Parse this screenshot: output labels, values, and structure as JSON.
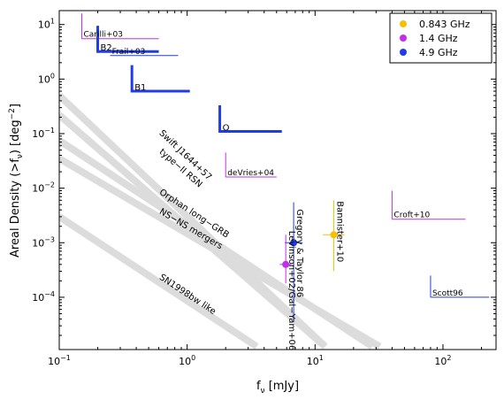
{
  "chart_data": {
    "type": "scatter",
    "xlabel": "f_ν [mJy]",
    "ylabel": "Areal Density (>f_ν) [deg^-2]",
    "x_scale": "log",
    "y_scale": "log",
    "xlim": [
      0.1,
      260
    ],
    "ylim": [
      1.1e-05,
      18
    ],
    "x_ticks": [
      {
        "value": 0.1,
        "base": "10",
        "exp": "−1"
      },
      {
        "value": 1,
        "base": "10",
        "exp": "0"
      },
      {
        "value": 10,
        "base": "10",
        "exp": "1"
      },
      {
        "value": 100,
        "base": "10",
        "exp": "2"
      }
    ],
    "y_ticks": [
      {
        "value": 0.0001,
        "base": "10",
        "exp": "−4"
      },
      {
        "value": 0.001,
        "base": "10",
        "exp": "−3"
      },
      {
        "value": 0.01,
        "base": "10",
        "exp": "−2"
      },
      {
        "value": 0.1,
        "base": "10",
        "exp": "−1"
      },
      {
        "value": 1,
        "base": "10",
        "exp": "0"
      },
      {
        "value": 10,
        "base": "10",
        "exp": "1"
      }
    ],
    "legend": {
      "placement": "top-right",
      "entries": [
        {
          "label": "0.843 GHz",
          "color": "#f5c000"
        },
        {
          "label": "1.4 GHz",
          "color": "#c030e8"
        },
        {
          "label": "4.9 GHz",
          "color": "#1f3ce8"
        }
      ]
    },
    "models": [
      {
        "label": "Swift J1644+57",
        "x": [
          0.1,
          12
        ],
        "y": [
          0.5,
          1.25e-05
        ],
        "label_at": [
          0.6,
          0.1
        ]
      },
      {
        "label": "type−II RSN",
        "x": [
          0.1,
          12
        ],
        "y": [
          0.22,
          1.25e-05
        ],
        "label_at": [
          0.6,
          0.045
        ]
      },
      {
        "label": "Orphan long−GRB",
        "x": [
          0.1,
          28
        ],
        "y": [
          0.075,
          1.25e-05
        ],
        "label_at": [
          0.6,
          0.008
        ]
      },
      {
        "label": "NS−NS mergers",
        "x": [
          0.1,
          32
        ],
        "y": [
          0.035,
          1.25e-05
        ],
        "label_at": [
          0.6,
          0.0035
        ]
      },
      {
        "label": "SN1998bw like",
        "x": [
          0.1,
          3.5
        ],
        "y": [
          0.003,
          1.25e-05
        ],
        "label_at": [
          0.6,
          0.00022
        ]
      }
    ],
    "limits": [
      {
        "label": "Carilli+03",
        "color": "#c030e8",
        "x": 0.15,
        "y": 5.5,
        "x_end": 0.6,
        "y_end": 16
      },
      {
        "label": "Frail+03",
        "color": "#1f3ce8",
        "x": 0.25,
        "y": 2.7,
        "x_end": 0.85,
        "y_end": null
      },
      {
        "label": "deVries+04",
        "color": "#c030e8",
        "x": 2,
        "y": 0.016,
        "x_end": 5,
        "y_end": 0.045
      },
      {
        "label": "Croft+10",
        "color": "#c030e8",
        "x": 40,
        "y": 0.0027,
        "x_end": 150,
        "y_end": 0.009
      },
      {
        "label": "Scott96",
        "color": "#1f3ce8",
        "x": 80,
        "y": 0.0001,
        "x_end": 230,
        "y_end": 0.00025
      }
    ],
    "thick_limits": [
      {
        "label": "B2",
        "color": "#1f3ce8",
        "x": 0.2,
        "y": 3.2,
        "x_end": 0.6,
        "y_end": 9.5
      },
      {
        "label": "B1",
        "color": "#1f3ce8",
        "x": 0.37,
        "y": 0.6,
        "x_end": 1.05,
        "y_end": 1.8
      },
      {
        "label": "O",
        "color": "#1f3ce8",
        "x": 1.8,
        "y": 0.11,
        "x_end": 5.5,
        "y_end": 0.33
      }
    ],
    "points": [
      {
        "label": "Bannister+10",
        "color": "#f5c000",
        "x": 14,
        "y": 0.0014,
        "xerr": [
          11.5,
          17
        ],
        "yerr": [
          0.0003,
          0.006
        ]
      },
      {
        "label": "Gregory & Taylor 86",
        "color": "#1f3ce8",
        "x": 6.8,
        "y": 0.001,
        "xerr": [
          5.8,
          8
        ],
        "yerr": [
          3.5e-05,
          0.0055
        ]
      },
      {
        "label": "Levinson+02/Gal−Yam+06",
        "color": "#c030e8",
        "x": 5.9,
        "y": 0.0004,
        "xerr": [
          5.3,
          6.5
        ],
        "yerr": [
          0.00018,
          0.0014
        ]
      }
    ]
  }
}
